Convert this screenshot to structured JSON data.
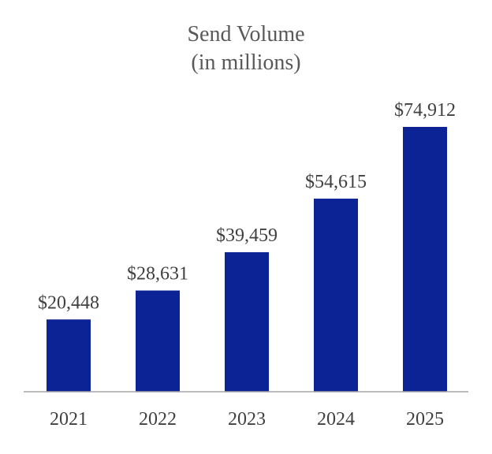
{
  "chart_data": {
    "type": "bar",
    "title": "Send Volume",
    "subtitle": "(in millions)",
    "categories": [
      "2021",
      "2022",
      "2023",
      "2024",
      "2025"
    ],
    "values": [
      20448,
      28631,
      39459,
      54615,
      74912
    ],
    "value_labels": [
      "$20,448",
      "$28,631",
      "$39,459",
      "$54,615",
      "$74,912"
    ],
    "xlabel": "",
    "ylabel": "",
    "ylim": [
      0,
      74912
    ],
    "grid": false,
    "legend": "none",
    "bar_color": "#0b2394",
    "axis_color": "#a6a6a6",
    "text_color": "#404040",
    "title_color": "#595959"
  }
}
